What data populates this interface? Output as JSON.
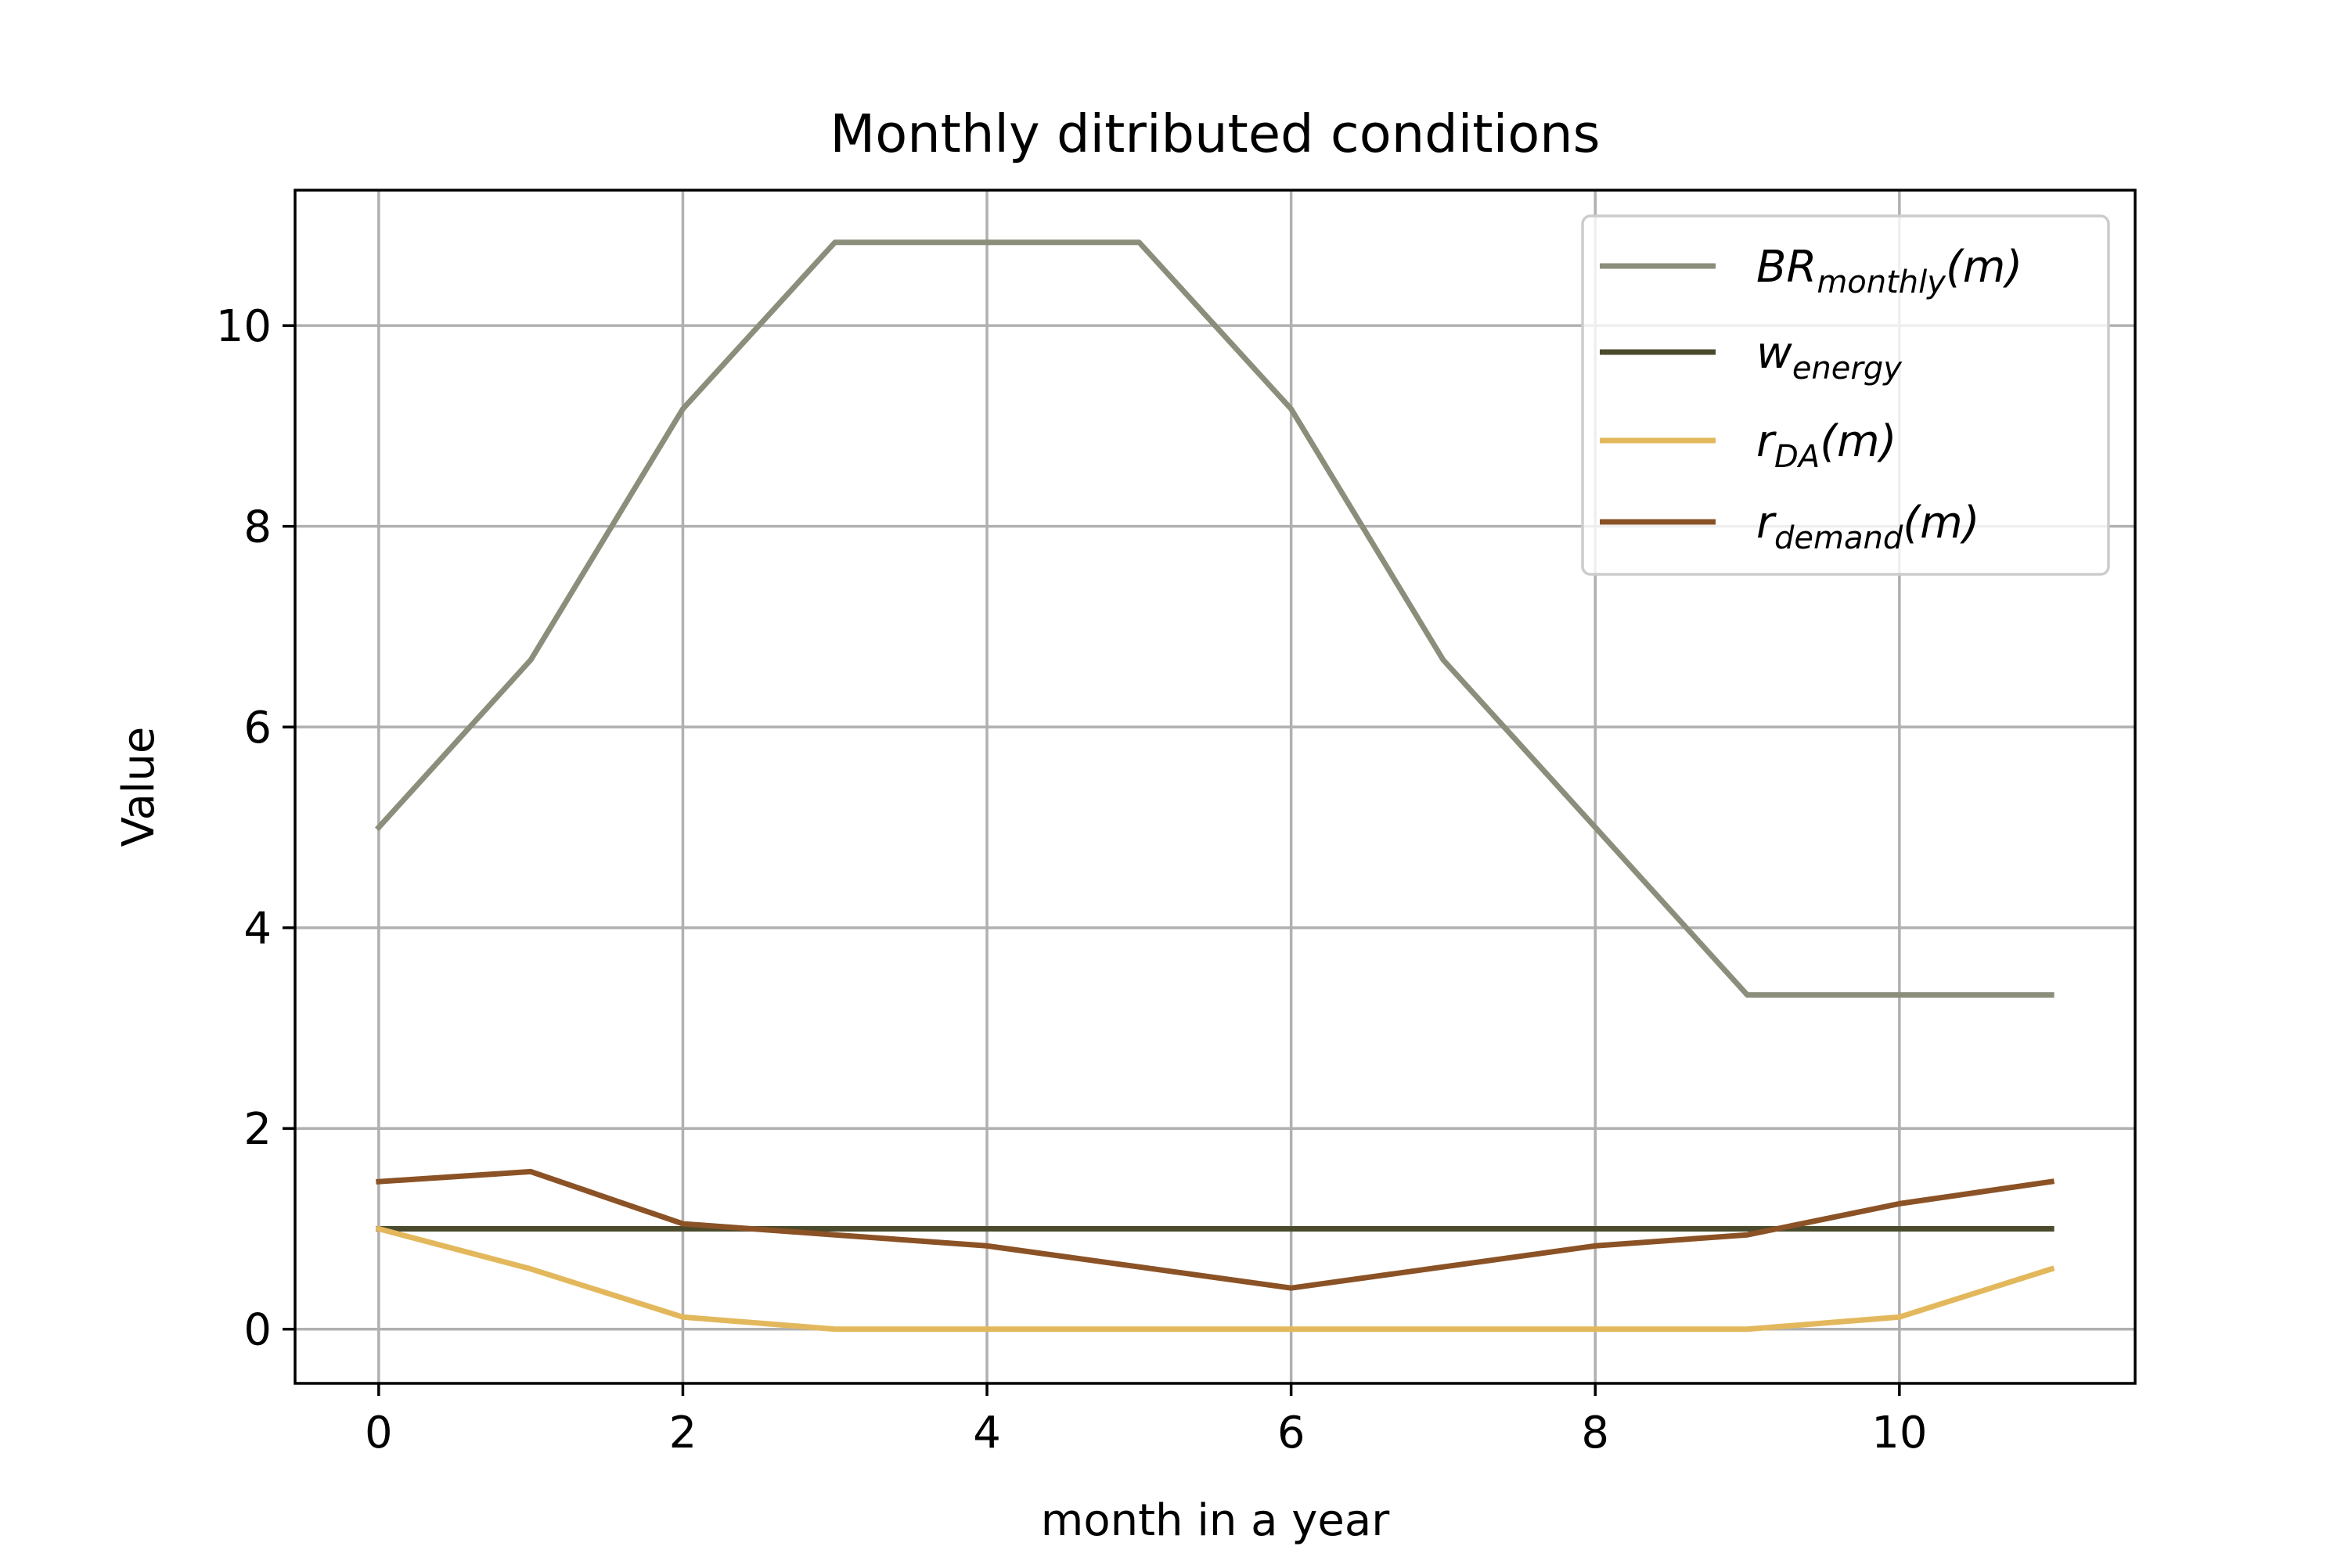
{
  "chart_data": {
    "type": "line",
    "title": "Monthly ditributed conditions",
    "xlabel": "month in a year",
    "ylabel": "Value",
    "xlim": [
      -0.55,
      11.55
    ],
    "ylim": [
      -0.54,
      11.35
    ],
    "xticks": [
      0,
      2,
      4,
      6,
      8,
      10
    ],
    "xtick_labels": [
      "0",
      "2",
      "4",
      "6",
      "8",
      "10"
    ],
    "yticks": [
      0,
      2,
      4,
      6,
      8,
      10
    ],
    "ytick_labels": [
      "0",
      "2",
      "4",
      "6",
      "8",
      "10"
    ],
    "grid": true,
    "legend_position": "upper-right",
    "x": [
      0,
      1,
      2,
      3,
      4,
      5,
      6,
      7,
      8,
      9,
      10,
      11
    ],
    "series": [
      {
        "name": "BR_monthly(m)",
        "legend": {
          "base": "BR",
          "sub": "monthly",
          "suffix": "(m)"
        },
        "color": "#8b8e7b",
        "values": [
          5.0,
          6.67,
          9.17,
          10.83,
          10.83,
          10.83,
          9.17,
          6.67,
          5.0,
          3.33,
          3.33,
          3.33
        ]
      },
      {
        "name": "w_energy",
        "legend": {
          "base": "w",
          "sub": "energy",
          "suffix": ""
        },
        "color": "#4a4a2c",
        "values": [
          1.0,
          1.0,
          1.0,
          1.0,
          1.0,
          1.0,
          1.0,
          1.0,
          1.0,
          1.0,
          1.0,
          1.0
        ]
      },
      {
        "name": "r_DA(m)",
        "legend": {
          "base": "r",
          "sub": "DA",
          "suffix": "(m)"
        },
        "color": "#e3b85c",
        "values": [
          1.0,
          0.6,
          0.12,
          0.0,
          0.0,
          0.0,
          0.0,
          0.0,
          0.0,
          0.0,
          0.12,
          0.6
        ]
      },
      {
        "name": "r_demand(m)",
        "legend": {
          "base": "r",
          "sub": "demand",
          "suffix": "(m)"
        },
        "color": "#8b5226",
        "values": [
          1.47,
          1.57,
          1.05,
          0.94,
          0.83,
          0.62,
          0.41,
          0.62,
          0.83,
          0.94,
          1.25,
          1.47
        ]
      }
    ]
  }
}
